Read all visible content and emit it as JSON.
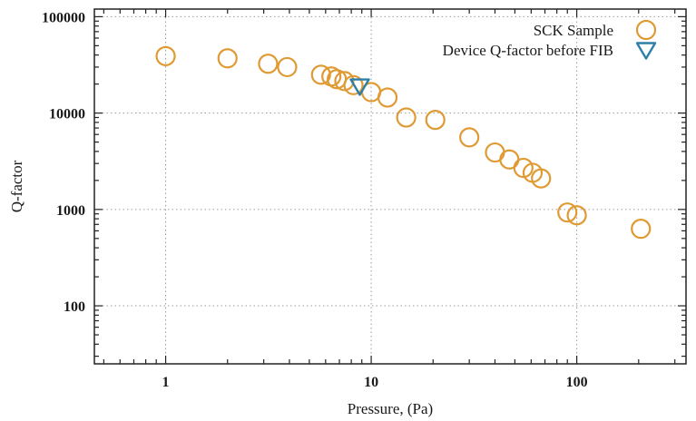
{
  "chart_data": {
    "type": "scatter",
    "xlabel": "Pressure, (Pa)",
    "ylabel": "Q-factor",
    "xscale": "log",
    "yscale": "log",
    "xlim": [
      0.45,
      340
    ],
    "ylim": [
      25,
      120000
    ],
    "xticks": [
      1,
      10,
      100
    ],
    "xtick_labels": [
      "1",
      "10",
      "100"
    ],
    "yticks": [
      100,
      1000,
      10000,
      100000
    ],
    "ytick_labels": [
      "100",
      "1000",
      "10000",
      "100000"
    ],
    "grid": true,
    "legend_position": "top-right",
    "series": [
      {
        "name": "SCK Sample",
        "marker": "circle",
        "color": "#E09A33",
        "points": [
          [
            1.0,
            39000
          ],
          [
            2.0,
            37000
          ],
          [
            3.15,
            32500
          ],
          [
            3.9,
            30000
          ],
          [
            5.7,
            25000
          ],
          [
            6.4,
            24000
          ],
          [
            6.8,
            22500
          ],
          [
            7.4,
            21500
          ],
          [
            8.2,
            19500
          ],
          [
            10.0,
            16500
          ],
          [
            12.0,
            14500
          ],
          [
            14.8,
            9000
          ],
          [
            20.5,
            8500
          ],
          [
            30.0,
            5600
          ],
          [
            40.0,
            3900
          ],
          [
            47.0,
            3300
          ],
          [
            55.0,
            2700
          ],
          [
            61.0,
            2400
          ],
          [
            67.0,
            2100
          ],
          [
            90.0,
            930
          ],
          [
            100.0,
            870
          ],
          [
            205.0,
            630
          ]
        ]
      },
      {
        "name": "Device Q-factor before FIB",
        "marker": "triangle-down",
        "color": "#2E7FA8",
        "points": [
          [
            8.8,
            19000
          ]
        ]
      }
    ]
  }
}
